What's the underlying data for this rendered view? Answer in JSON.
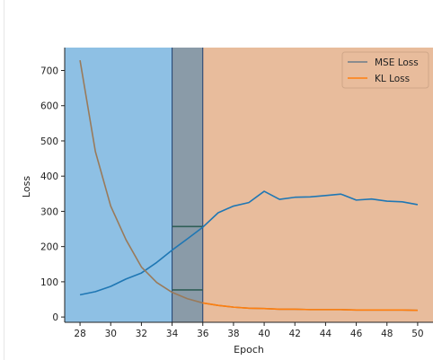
{
  "chart_data": {
    "type": "line",
    "xlabel": "Epoch",
    "ylabel": "Loss",
    "xlim": [
      27,
      51
    ],
    "ylim": [
      -15,
      765
    ],
    "x_ticks": [
      "28",
      "30",
      "32",
      "34",
      "36",
      "38",
      "40",
      "42",
      "44",
      "46",
      "48",
      "50"
    ],
    "y_ticks": [
      "0",
      "100",
      "200",
      "300",
      "400",
      "500",
      "600",
      "700"
    ],
    "grid": false,
    "legend_position": "top-right",
    "regions": [
      {
        "x_from": 27,
        "x_to": 34,
        "color": "#8ec0e4"
      },
      {
        "x_from": 34,
        "x_to": 36,
        "color": "#8a9ba8"
      },
      {
        "x_from": 36,
        "x_to": 51,
        "color": "#e8bc9c"
      }
    ],
    "segments": [
      {
        "x": 34,
        "y": 257,
        "x2": 36
      },
      {
        "x": 34,
        "y": 77,
        "x2": 36
      }
    ],
    "series": [
      {
        "name": "MSE Loss",
        "color": "#1f77b4",
        "x": [
          28,
          29,
          30,
          31,
          32,
          33,
          34,
          35,
          36,
          37,
          38,
          39,
          40,
          41,
          42,
          43,
          44,
          45,
          46,
          47,
          48,
          49,
          50
        ],
        "y": [
          63,
          72,
          87,
          108,
          125,
          155,
          190,
          222,
          255,
          296,
          315,
          325,
          357,
          334,
          340,
          341,
          345,
          349,
          332,
          335,
          329,
          327,
          319
        ]
      },
      {
        "name": "KL Loss",
        "color": "#ff7f0e",
        "x": [
          28,
          29,
          30,
          31,
          32,
          33,
          34,
          35,
          36,
          37,
          38,
          39,
          40,
          41,
          42,
          43,
          44,
          45,
          46,
          47,
          48,
          49,
          50
        ],
        "y": [
          729,
          470,
          315,
          219,
          142,
          98,
          70,
          52,
          40,
          33,
          28,
          25,
          24,
          22,
          22,
          21,
          21,
          21,
          20,
          20,
          20,
          20,
          19
        ]
      }
    ]
  },
  "colors": {
    "legend_line_mse": "#6b7d8a",
    "legend_line_kl": "#ff7f0e",
    "dark_segment": "#2f5f57",
    "axis": "#222222"
  }
}
